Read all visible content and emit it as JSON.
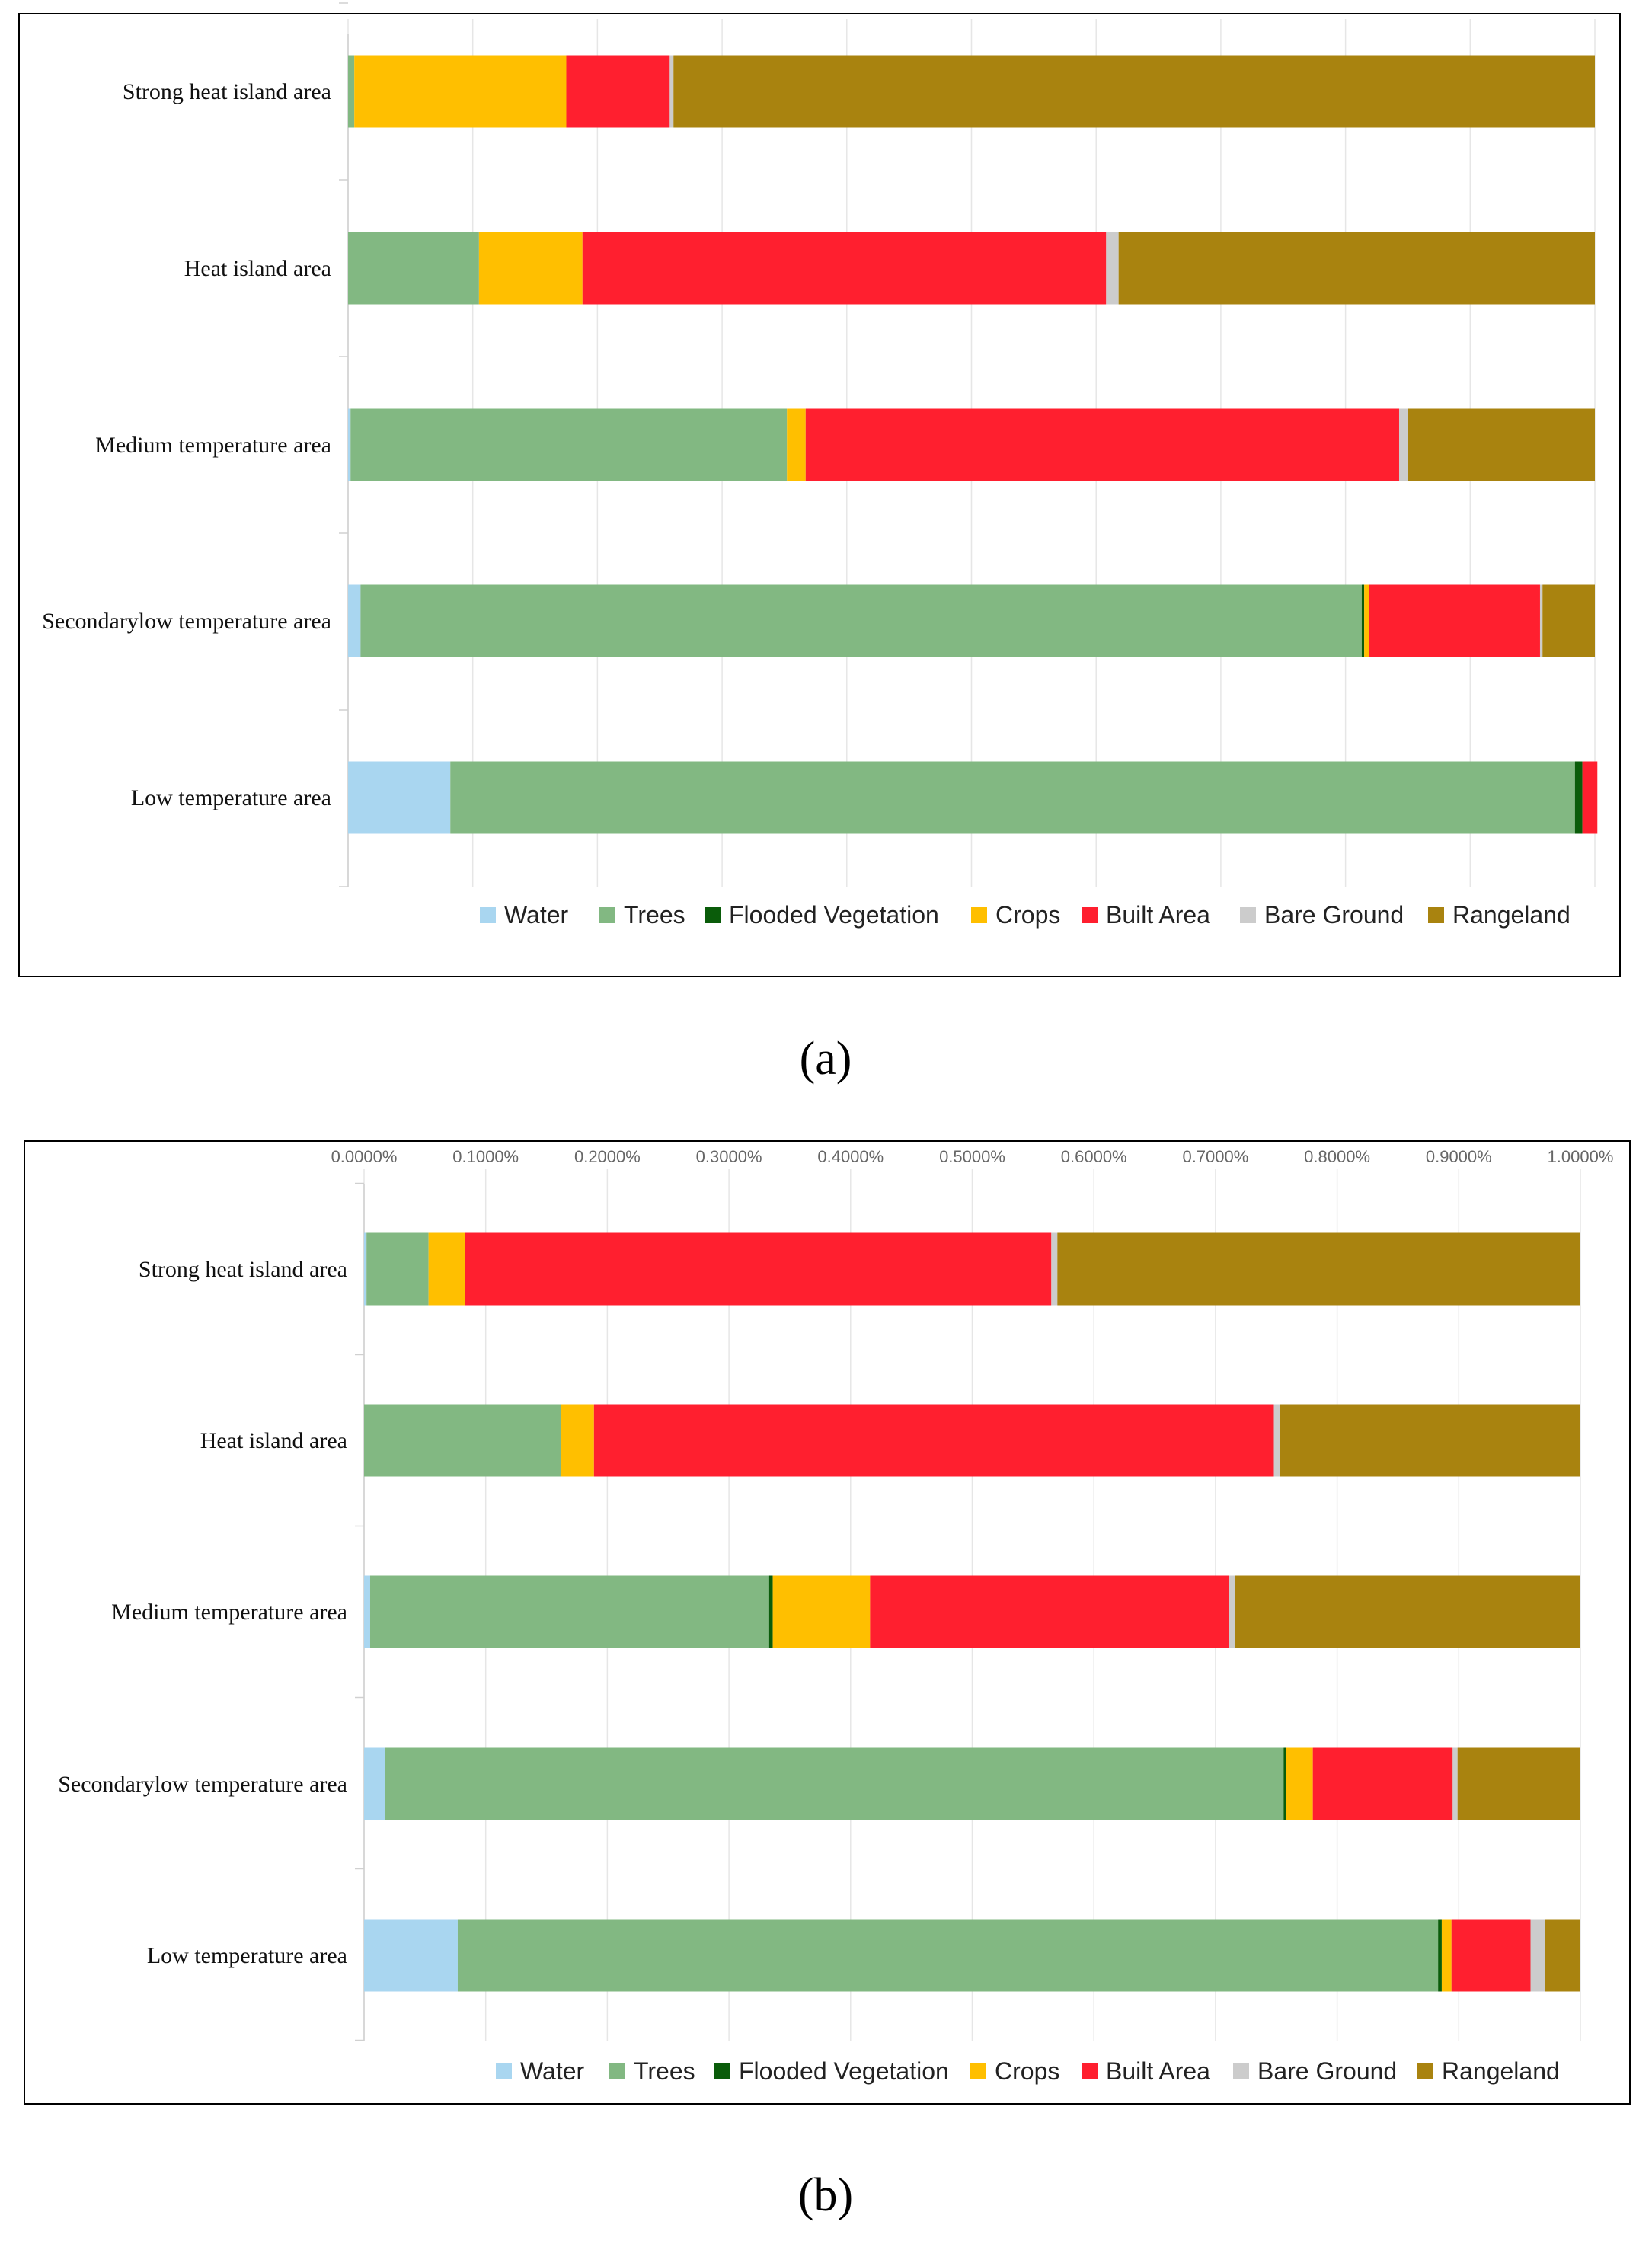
{
  "chart_data": [
    {
      "type": "bar",
      "stacked": true,
      "orientation": "horizontal",
      "caption": "(a)",
      "categories": [
        "Strong heat island area",
        "Heat island area",
        "Medium temperature area",
        "Secondarylow temperature area",
        "Low temperature area"
      ],
      "xlim": [
        0,
        1
      ],
      "tick_labels": [],
      "grid": true,
      "legend_position": "bottom",
      "series": [
        {
          "name": "Water",
          "color": "#a9d6f0",
          "values": [
            0.0,
            0.0,
            0.002,
            0.01,
            0.082
          ]
        },
        {
          "name": "Trees",
          "color": "#82b882",
          "values": [
            0.005,
            0.105,
            0.35,
            0.803,
            0.902
          ]
        },
        {
          "name": "Flooded Vegetation",
          "color": "#0a5c0a",
          "values": [
            0.0,
            0.0,
            0.0,
            0.002,
            0.006
          ]
        },
        {
          "name": "Crops",
          "color": "#ffbf00",
          "values": [
            0.17,
            0.083,
            0.015,
            0.004,
            0.0
          ]
        },
        {
          "name": "Built Area",
          "color": "#ff1f2f",
          "values": [
            0.083,
            0.42,
            0.476,
            0.137,
            0.012
          ]
        },
        {
          "name": "Bare Ground",
          "color": "#cccccc",
          "values": [
            0.003,
            0.01,
            0.007,
            0.002,
            0.0
          ]
        },
        {
          "name": "Rangeland",
          "color": "#a9830f",
          "values": [
            0.739,
            0.382,
            0.15,
            0.042,
            0.0
          ]
        }
      ]
    },
    {
      "type": "bar",
      "stacked": true,
      "orientation": "horizontal",
      "caption": "(b)",
      "categories": [
        "Strong heat island area",
        "Heat island area",
        "Medium temperature area",
        "Secondarylow temperature area",
        "Low temperature area"
      ],
      "xlim": [
        0,
        1
      ],
      "tick_labels": [
        "0.0000%",
        "0.1000%",
        "0.2000%",
        "0.3000%",
        "0.4000%",
        "0.5000%",
        "0.6000%",
        "0.7000%",
        "0.8000%",
        "0.9000%",
        "1.0000%"
      ],
      "grid": true,
      "legend_position": "bottom",
      "series": [
        {
          "name": "Water",
          "color": "#a9d6f0",
          "values": [
            0.002,
            0.0,
            0.005,
            0.017,
            0.077
          ]
        },
        {
          "name": "Trees",
          "color": "#82b882",
          "values": [
            0.051,
            0.162,
            0.328,
            0.739,
            0.806
          ]
        },
        {
          "name": "Flooded Vegetation",
          "color": "#0a5c0a",
          "values": [
            0.0,
            0.0,
            0.003,
            0.002,
            0.003
          ]
        },
        {
          "name": "Crops",
          "color": "#ffbf00",
          "values": [
            0.03,
            0.027,
            0.08,
            0.022,
            0.008
          ]
        },
        {
          "name": "Built Area",
          "color": "#ff1f2f",
          "values": [
            0.482,
            0.559,
            0.295,
            0.115,
            0.065
          ]
        },
        {
          "name": "Bare Ground",
          "color": "#cccccc",
          "values": [
            0.005,
            0.005,
            0.005,
            0.004,
            0.012
          ]
        },
        {
          "name": "Rangeland",
          "color": "#a9830f",
          "values": [
            0.43,
            0.247,
            0.284,
            0.101,
            0.029
          ]
        }
      ]
    }
  ]
}
